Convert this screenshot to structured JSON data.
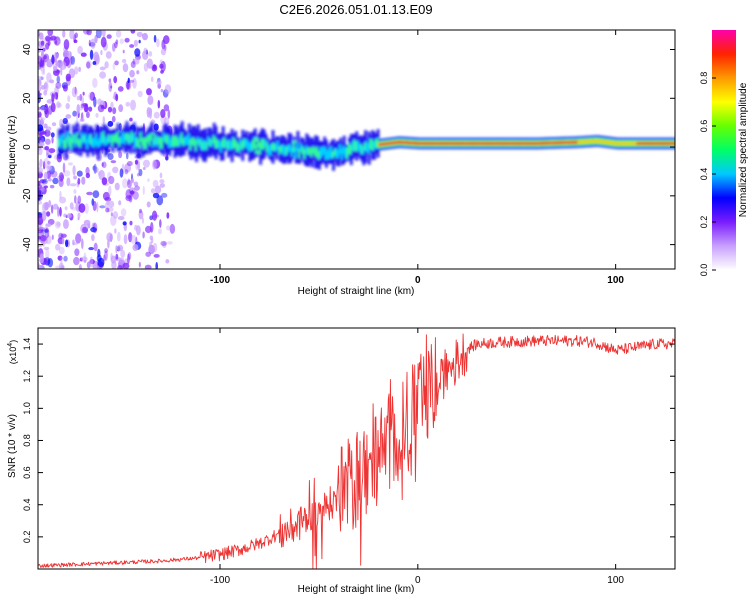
{
  "figure_title": "C2E6.2026.051.01.13.E09",
  "chart_data": [
    {
      "type": "heatmap",
      "title": "C2E6.2026.051.01.13.E09",
      "xlabel": "Height of straight line (km)",
      "ylabel": "Frequency (Hz)",
      "xlim": [
        -192,
        130
      ],
      "ylim": [
        -50,
        48
      ],
      "x_ticks": [
        -100,
        0,
        100
      ],
      "y_ticks": [
        -40,
        -20,
        0,
        20,
        40
      ],
      "colorbar": {
        "label": "Normalized spectral amplitude",
        "range": [
          0,
          1
        ],
        "ticks": [
          0.0,
          0.2,
          0.4,
          0.6,
          0.8
        ],
        "colors": [
          "#ffffff",
          "#c8a0ff",
          "#7a1cff",
          "#0000ff",
          "#00c8ff",
          "#00ff66",
          "#66ff00",
          "#ffff00",
          "#ff9900",
          "#ff2200",
          "#ff00aa"
        ]
      },
      "ridge": {
        "description": "dominant spectral line near 2 Hz",
        "x": [
          -175,
          -150,
          -125,
          -100,
          -80,
          -65,
          -55,
          -45,
          -35,
          -25,
          -20,
          -10,
          0,
          20,
          40,
          60,
          80,
          90,
          100,
          110,
          130
        ],
        "y": [
          2.5,
          3,
          2.5,
          1.5,
          0.5,
          -1,
          -2,
          -3,
          -1,
          0.5,
          1,
          2,
          1.5,
          1.5,
          1.5,
          1.5,
          2,
          2.5,
          1.5,
          1.5,
          1.5
        ]
      }
    },
    {
      "type": "line",
      "xlabel": "Height of straight line (km)",
      "ylabel": "SNR (10 * v/v)",
      "y_multiplier": "(x10",
      "y_multiplier_exp": "4",
      "y_multiplier_close": ")",
      "xlim": [
        -192,
        130
      ],
      "ylim": [
        0,
        1.5
      ],
      "x_ticks": [
        -100,
        0,
        100
      ],
      "y_ticks": [
        0.2,
        0.4,
        0.6,
        0.8,
        1.0,
        1.2,
        1.4
      ],
      "color": "#ee3333",
      "series": [
        {
          "name": "SNR",
          "x": [
            -192,
            -170,
            -150,
            -130,
            -110,
            -100,
            -90,
            -80,
            -70,
            -60,
            -50,
            -45,
            -40,
            -35,
            -30,
            -25,
            -20,
            -15,
            -10,
            -5,
            0,
            5,
            10,
            15,
            20,
            25,
            30,
            40,
            60,
            80,
            90,
            100,
            110,
            120,
            130
          ],
          "y": [
            0.02,
            0.03,
            0.04,
            0.05,
            0.07,
            0.09,
            0.12,
            0.16,
            0.22,
            0.28,
            0.35,
            0.4,
            0.45,
            0.5,
            0.58,
            0.62,
            0.7,
            0.78,
            0.85,
            0.92,
            1.0,
            1.08,
            1.15,
            1.22,
            1.3,
            1.37,
            1.4,
            1.41,
            1.42,
            1.42,
            1.41,
            1.36,
            1.38,
            1.4,
            1.4
          ]
        }
      ]
    }
  ]
}
